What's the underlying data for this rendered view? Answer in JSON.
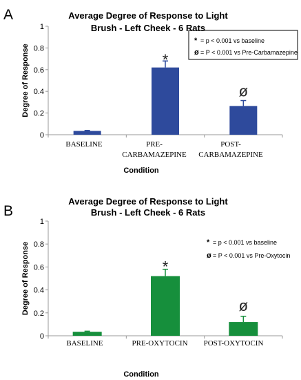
{
  "chart_data": [
    {
      "type": "bar",
      "panel_label": "A",
      "title": "Average Degree of Response to Light",
      "subtitle": "Brush - Left Cheek - 6 Rats",
      "xlabel": "Condition",
      "ylabel": "Degree of Response",
      "ylim": [
        0,
        1
      ],
      "yticks": [
        "0",
        "0.2",
        "0.4",
        "0.6",
        "0.8",
        "1"
      ],
      "categories": [
        [
          "BASELINE"
        ],
        [
          "PRE-",
          "CARBAMAZEPINE"
        ],
        [
          "POST-",
          "CARBAMAZEPINE"
        ]
      ],
      "values": [
        0.035,
        0.62,
        0.265
      ],
      "error": [
        0.005,
        0.06,
        0.05
      ],
      "markers": [
        "",
        "*",
        "ø"
      ],
      "bar_color": "#2e4a9c",
      "error_color": "#2e4a9c",
      "legend_box": true,
      "legend": [
        {
          "symbol": "*",
          "text": "= p < 0.001 vs baseline"
        },
        {
          "symbol": "ø",
          "text": "= P < 0.001 vs Pre-Carbamazepine"
        }
      ]
    },
    {
      "type": "bar",
      "panel_label": "B",
      "title": "Average Degree of Response to Light",
      "subtitle": "Brush - Left Cheek - 6 Rats",
      "xlabel": "Condition",
      "ylabel": "Degree of Response",
      "ylim": [
        0,
        1
      ],
      "yticks": [
        "0",
        "0.2",
        "0.4",
        "0.6",
        "0.8",
        "1"
      ],
      "categories": [
        [
          "BASELINE"
        ],
        [
          "PRE-OXYTOCIN"
        ],
        [
          "POST-OXYTOCIN"
        ]
      ],
      "values": [
        0.035,
        0.52,
        0.12
      ],
      "error": [
        0.005,
        0.06,
        0.05
      ],
      "markers": [
        "",
        "*",
        "ø"
      ],
      "bar_color": "#168f3c",
      "error_color": "#168f3c",
      "legend_box": false,
      "legend": [
        {
          "symbol": "*",
          "text": "= p < 0.001 vs baseline"
        },
        {
          "symbol": "ø",
          "text": "= P < 0.001 vs Pre-Oxytocin"
        }
      ]
    }
  ]
}
